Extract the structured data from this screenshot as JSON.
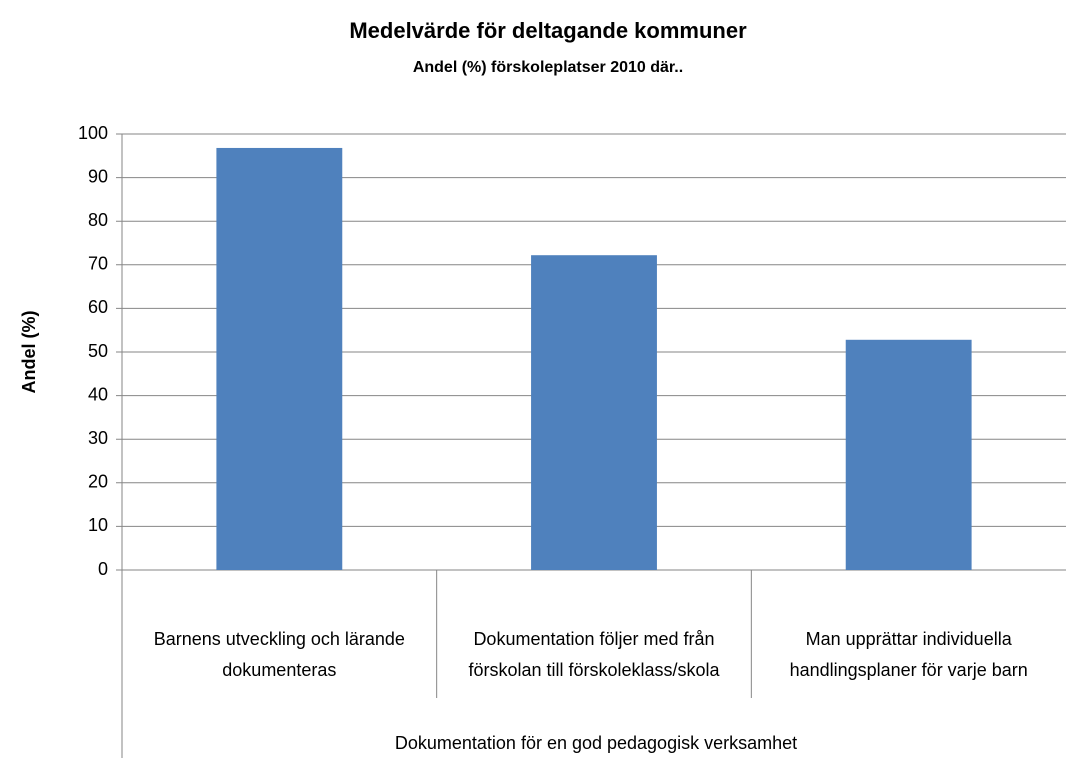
{
  "chart_data": {
    "type": "bar",
    "title": "Medelvärde för deltagande kommuner",
    "subtitle": "Andel (%) förskoleplatser 2010 där..",
    "y_label": "Andel (%)",
    "x_label": "Dokumentation för en god pedagogisk verksamhet",
    "categories": [
      "Barnens utveckling och lärande dokumenteras",
      "Dokumentation följer med från förskolan till förskoleklass/skola",
      "Man upprättar individuella handlingsplaner för varje barn"
    ],
    "values": [
      96.8,
      72.2,
      52.8
    ],
    "color": "#4f81bd",
    "ylim": [
      0,
      100
    ],
    "yticks": [
      0,
      10,
      20,
      30,
      40,
      50,
      60,
      70,
      80,
      90,
      100
    ],
    "grid": true
  }
}
